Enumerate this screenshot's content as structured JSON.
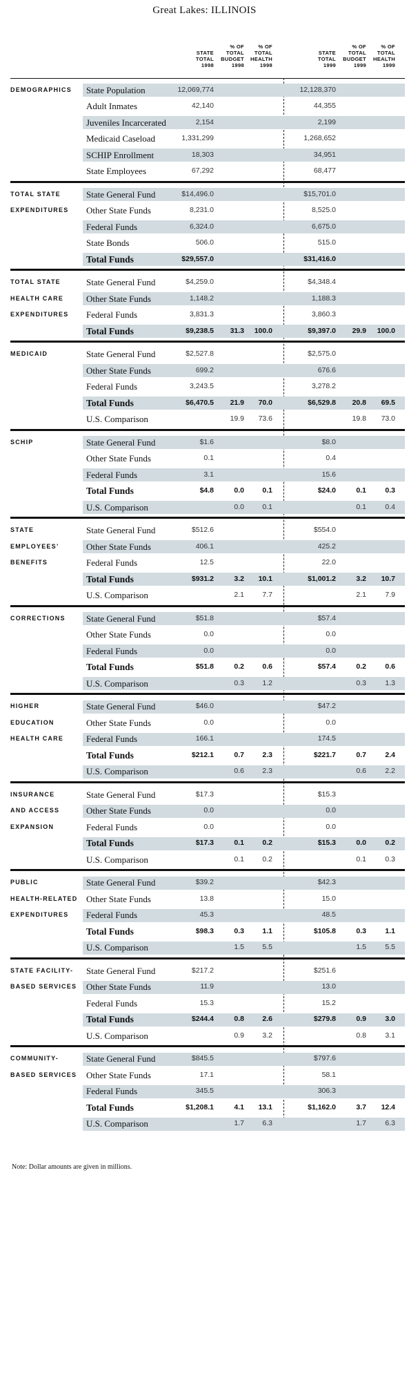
{
  "title": "Great Lakes: ILLINOIS",
  "columns": [
    {
      "lines": [
        "STATE",
        "TOTAL",
        "1998"
      ]
    },
    {
      "lines": [
        "% OF",
        "TOTAL",
        "BUDGET",
        "1998"
      ]
    },
    {
      "lines": [
        "% OF",
        "TOTAL",
        "HEALTH",
        "1998"
      ]
    },
    {
      "lines": [
        "STATE",
        "TOTAL",
        "1999"
      ]
    },
    {
      "lines": [
        "% OF",
        "TOTAL",
        "BUDGET",
        "1999"
      ]
    },
    {
      "lines": [
        "% OF",
        "TOTAL",
        "HEALTH",
        "1999"
      ]
    }
  ],
  "sections": [
    {
      "lines": [
        "DEMOGRAPHICS"
      ],
      "rows": [
        {
          "label": "State Population",
          "shaded": true,
          "cells": [
            "12,069,774",
            "",
            "",
            "12,128,370",
            "",
            ""
          ]
        },
        {
          "label": "Adult Inmates",
          "shaded": false,
          "cells": [
            "42,140",
            "",
            "",
            "44,355",
            "",
            ""
          ]
        },
        {
          "label": "Juveniles Incarcerated",
          "shaded": true,
          "cells": [
            "2,154",
            "",
            "",
            "2,199",
            "",
            ""
          ]
        },
        {
          "label": "Medicaid Caseload",
          "shaded": false,
          "cells": [
            "1,331,299",
            "",
            "",
            "1,268,652",
            "",
            ""
          ]
        },
        {
          "label": "SCHIP Enrollment",
          "shaded": true,
          "cells": [
            "18,303",
            "",
            "",
            "34,951",
            "",
            ""
          ]
        },
        {
          "label": "State Employees",
          "shaded": false,
          "cells": [
            "67,292",
            "",
            "",
            "68,477",
            "",
            ""
          ]
        }
      ]
    },
    {
      "lines": [
        "TOTAL STATE",
        "EXPENDITURES"
      ],
      "rows": [
        {
          "label": "State General Fund",
          "shaded": true,
          "cells": [
            "$14,496.0",
            "",
            "",
            "$15,701.0",
            "",
            ""
          ]
        },
        {
          "label": "Other State Funds",
          "shaded": false,
          "cells": [
            "8,231.0",
            "",
            "",
            "8,525.0",
            "",
            ""
          ]
        },
        {
          "label": "Federal Funds",
          "shaded": true,
          "cells": [
            "6,324.0",
            "",
            "",
            "6,675.0",
            "",
            ""
          ]
        },
        {
          "label": "State Bonds",
          "shaded": false,
          "cells": [
            "506.0",
            "",
            "",
            "515.0",
            "",
            ""
          ]
        },
        {
          "label": "Total Funds",
          "shaded": true,
          "total": true,
          "cells": [
            "$29,557.0",
            "",
            "",
            "$31,416.0",
            "",
            ""
          ]
        }
      ]
    },
    {
      "lines": [
        "TOTAL STATE",
        "HEALTH CARE",
        "EXPENDITURES"
      ],
      "rows": [
        {
          "label": "State General Fund",
          "shaded": false,
          "cells": [
            "$4,259.0",
            "",
            "",
            "$4,348.4",
            "",
            ""
          ]
        },
        {
          "label": "Other State Funds",
          "shaded": true,
          "cells": [
            "1,148.2",
            "",
            "",
            "1,188.3",
            "",
            ""
          ]
        },
        {
          "label": "Federal Funds",
          "shaded": false,
          "cells": [
            "3,831.3",
            "",
            "",
            "3,860.3",
            "",
            ""
          ]
        },
        {
          "label": "Total Funds",
          "shaded": true,
          "total": true,
          "cells": [
            "$9,238.5",
            "31.3",
            "100.0",
            "$9,397.0",
            "29.9",
            "100.0"
          ]
        }
      ]
    },
    {
      "lines": [
        "MEDICAID"
      ],
      "rows": [
        {
          "label": "State General Fund",
          "shaded": false,
          "cells": [
            "$2,527.8",
            "",
            "",
            "$2,575.0",
            "",
            ""
          ]
        },
        {
          "label": "Other State Funds",
          "shaded": true,
          "cells": [
            "699.2",
            "",
            "",
            "676.6",
            "",
            ""
          ]
        },
        {
          "label": "Federal Funds",
          "shaded": false,
          "cells": [
            "3,243.5",
            "",
            "",
            "3,278.2",
            "",
            ""
          ]
        },
        {
          "label": "Total Funds",
          "shaded": true,
          "total": true,
          "cells": [
            "$6,470.5",
            "21.9",
            "70.0",
            "$6,529.8",
            "20.8",
            "69.5"
          ]
        },
        {
          "label": "U.S. Comparison",
          "shaded": false,
          "cells": [
            "",
            "19.9",
            "73.6",
            "",
            "19.8",
            "73.0"
          ]
        }
      ]
    },
    {
      "lines": [
        "SCHIP"
      ],
      "rows": [
        {
          "label": "State General Fund",
          "shaded": true,
          "cells": [
            "$1.6",
            "",
            "",
            "$8.0",
            "",
            ""
          ]
        },
        {
          "label": "Other State Funds",
          "shaded": false,
          "cells": [
            "0.1",
            "",
            "",
            "0.4",
            "",
            ""
          ]
        },
        {
          "label": "Federal Funds",
          "shaded": true,
          "cells": [
            "3.1",
            "",
            "",
            "15.6",
            "",
            ""
          ]
        },
        {
          "label": "Total Funds",
          "shaded": false,
          "total": true,
          "cells": [
            "$4.8",
            "0.0",
            "0.1",
            "$24.0",
            "0.1",
            "0.3"
          ]
        },
        {
          "label": "U.S. Comparison",
          "shaded": true,
          "cells": [
            "",
            "0.0",
            "0.1",
            "",
            "0.1",
            "0.4"
          ]
        }
      ]
    },
    {
      "lines": [
        "STATE",
        "EMPLOYEES’",
        "BENEFITS"
      ],
      "rows": [
        {
          "label": "State General Fund",
          "shaded": false,
          "cells": [
            "$512.6",
            "",
            "",
            "$554.0",
            "",
            ""
          ]
        },
        {
          "label": "Other State Funds",
          "shaded": true,
          "cells": [
            "406.1",
            "",
            "",
            "425.2",
            "",
            ""
          ]
        },
        {
          "label": "Federal Funds",
          "shaded": false,
          "cells": [
            "12.5",
            "",
            "",
            "22.0",
            "",
            ""
          ]
        },
        {
          "label": "Total Funds",
          "shaded": true,
          "total": true,
          "cells": [
            "$931.2",
            "3.2",
            "10.1",
            "$1,001.2",
            "3.2",
            "10.7"
          ]
        },
        {
          "label": "U.S. Comparison",
          "shaded": false,
          "cells": [
            "",
            "2.1",
            "7.7",
            "",
            "2.1",
            "7.9"
          ]
        }
      ]
    },
    {
      "lines": [
        "CORRECTIONS"
      ],
      "rows": [
        {
          "label": "State General Fund",
          "shaded": true,
          "cells": [
            "$51.8",
            "",
            "",
            "$57.4",
            "",
            ""
          ]
        },
        {
          "label": "Other State Funds",
          "shaded": false,
          "cells": [
            "0.0",
            "",
            "",
            "0.0",
            "",
            ""
          ]
        },
        {
          "label": "Federal Funds",
          "shaded": true,
          "cells": [
            "0.0",
            "",
            "",
            "0.0",
            "",
            ""
          ]
        },
        {
          "label": "Total Funds",
          "shaded": false,
          "total": true,
          "cells": [
            "$51.8",
            "0.2",
            "0.6",
            "$57.4",
            "0.2",
            "0.6"
          ]
        },
        {
          "label": "U.S. Comparison",
          "shaded": true,
          "cells": [
            "",
            "0.3",
            "1.2",
            "",
            "0.3",
            "1.3"
          ]
        }
      ]
    },
    {
      "lines": [
        "HIGHER",
        "EDUCATION",
        "HEALTH CARE"
      ],
      "rows": [
        {
          "label": "State General Fund",
          "shaded": true,
          "cells": [
            "$46.0",
            "",
            "",
            "$47.2",
            "",
            ""
          ]
        },
        {
          "label": "Other State Funds",
          "shaded": false,
          "cells": [
            "0.0",
            "",
            "",
            "0.0",
            "",
            ""
          ]
        },
        {
          "label": "Federal Funds",
          "shaded": true,
          "cells": [
            "166.1",
            "",
            "",
            "174.5",
            "",
            ""
          ]
        },
        {
          "label": "Total Funds",
          "shaded": false,
          "total": true,
          "cells": [
            "$212.1",
            "0.7",
            "2.3",
            "$221.7",
            "0.7",
            "2.4"
          ]
        },
        {
          "label": "U.S. Comparison",
          "shaded": true,
          "cells": [
            "",
            "0.6",
            "2.3",
            "",
            "0.6",
            "2.2"
          ]
        }
      ]
    },
    {
      "lines": [
        "INSURANCE",
        "AND ACCESS",
        "EXPANSION"
      ],
      "rows": [
        {
          "label": "State General Fund",
          "shaded": false,
          "cells": [
            "$17.3",
            "",
            "",
            "$15.3",
            "",
            ""
          ]
        },
        {
          "label": "Other State Funds",
          "shaded": true,
          "cells": [
            "0.0",
            "",
            "",
            "0.0",
            "",
            ""
          ]
        },
        {
          "label": "Federal Funds",
          "shaded": false,
          "cells": [
            "0.0",
            "",
            "",
            "0.0",
            "",
            ""
          ]
        },
        {
          "label": "Total Funds",
          "shaded": true,
          "total": true,
          "cells": [
            "$17.3",
            "0.1",
            "0.2",
            "$15.3",
            "0.0",
            "0.2"
          ]
        },
        {
          "label": "U.S. Comparison",
          "shaded": false,
          "cells": [
            "",
            "0.1",
            "0.2",
            "",
            "0.1",
            "0.3"
          ]
        }
      ]
    },
    {
      "lines": [
        "PUBLIC",
        "HEALTH-RELATED",
        "EXPENDITURES"
      ],
      "rows": [
        {
          "label": "State General Fund",
          "shaded": true,
          "cells": [
            "$39.2",
            "",
            "",
            "$42.3",
            "",
            ""
          ]
        },
        {
          "label": "Other State Funds",
          "shaded": false,
          "cells": [
            "13.8",
            "",
            "",
            "15.0",
            "",
            ""
          ]
        },
        {
          "label": "Federal Funds",
          "shaded": true,
          "cells": [
            "45.3",
            "",
            "",
            "48.5",
            "",
            ""
          ]
        },
        {
          "label": "Total Funds",
          "shaded": false,
          "total": true,
          "cells": [
            "$98.3",
            "0.3",
            "1.1",
            "$105.8",
            "0.3",
            "1.1"
          ]
        },
        {
          "label": "U.S. Comparison",
          "shaded": true,
          "cells": [
            "",
            "1.5",
            "5.5",
            "",
            "1.5",
            "5.5"
          ]
        }
      ]
    },
    {
      "lines": [
        "STATE FACILITY-",
        "BASED SERVICES"
      ],
      "rows": [
        {
          "label": "State General Fund",
          "shaded": false,
          "cells": [
            "$217.2",
            "",
            "",
            "$251.6",
            "",
            ""
          ]
        },
        {
          "label": "Other State Funds",
          "shaded": true,
          "cells": [
            "11.9",
            "",
            "",
            "13.0",
            "",
            ""
          ]
        },
        {
          "label": "Federal Funds",
          "shaded": false,
          "cells": [
            "15.3",
            "",
            "",
            "15.2",
            "",
            ""
          ]
        },
        {
          "label": "Total Funds",
          "shaded": true,
          "total": true,
          "cells": [
            "$244.4",
            "0.8",
            "2.6",
            "$279.8",
            "0.9",
            "3.0"
          ]
        },
        {
          "label": "U.S. Comparison",
          "shaded": false,
          "cells": [
            "",
            "0.9",
            "3.2",
            "",
            "0.8",
            "3.1"
          ]
        }
      ]
    },
    {
      "lines": [
        "COMMUNITY-",
        "BASED SERVICES"
      ],
      "rows": [
        {
          "label": "State General Fund",
          "shaded": true,
          "cells": [
            "$845.5",
            "",
            "",
            "$797.6",
            "",
            ""
          ]
        },
        {
          "label": "Other State Funds",
          "shaded": false,
          "cells": [
            "17.1",
            "",
            "",
            "58.1",
            "",
            ""
          ]
        },
        {
          "label": "Federal Funds",
          "shaded": true,
          "cells": [
            "345.5",
            "",
            "",
            "306.3",
            "",
            ""
          ]
        },
        {
          "label": "Total Funds",
          "shaded": false,
          "total": true,
          "cells": [
            "$1,208.1",
            "4.1",
            "13.1",
            "$1,162.0",
            "3.7",
            "12.4"
          ]
        },
        {
          "label": "U.S. Comparison",
          "shaded": true,
          "cells": [
            "",
            "1.7",
            "6.3",
            "",
            "1.7",
            "6.3"
          ]
        }
      ]
    }
  ],
  "note": "Note: Dollar amounts are given in millions."
}
